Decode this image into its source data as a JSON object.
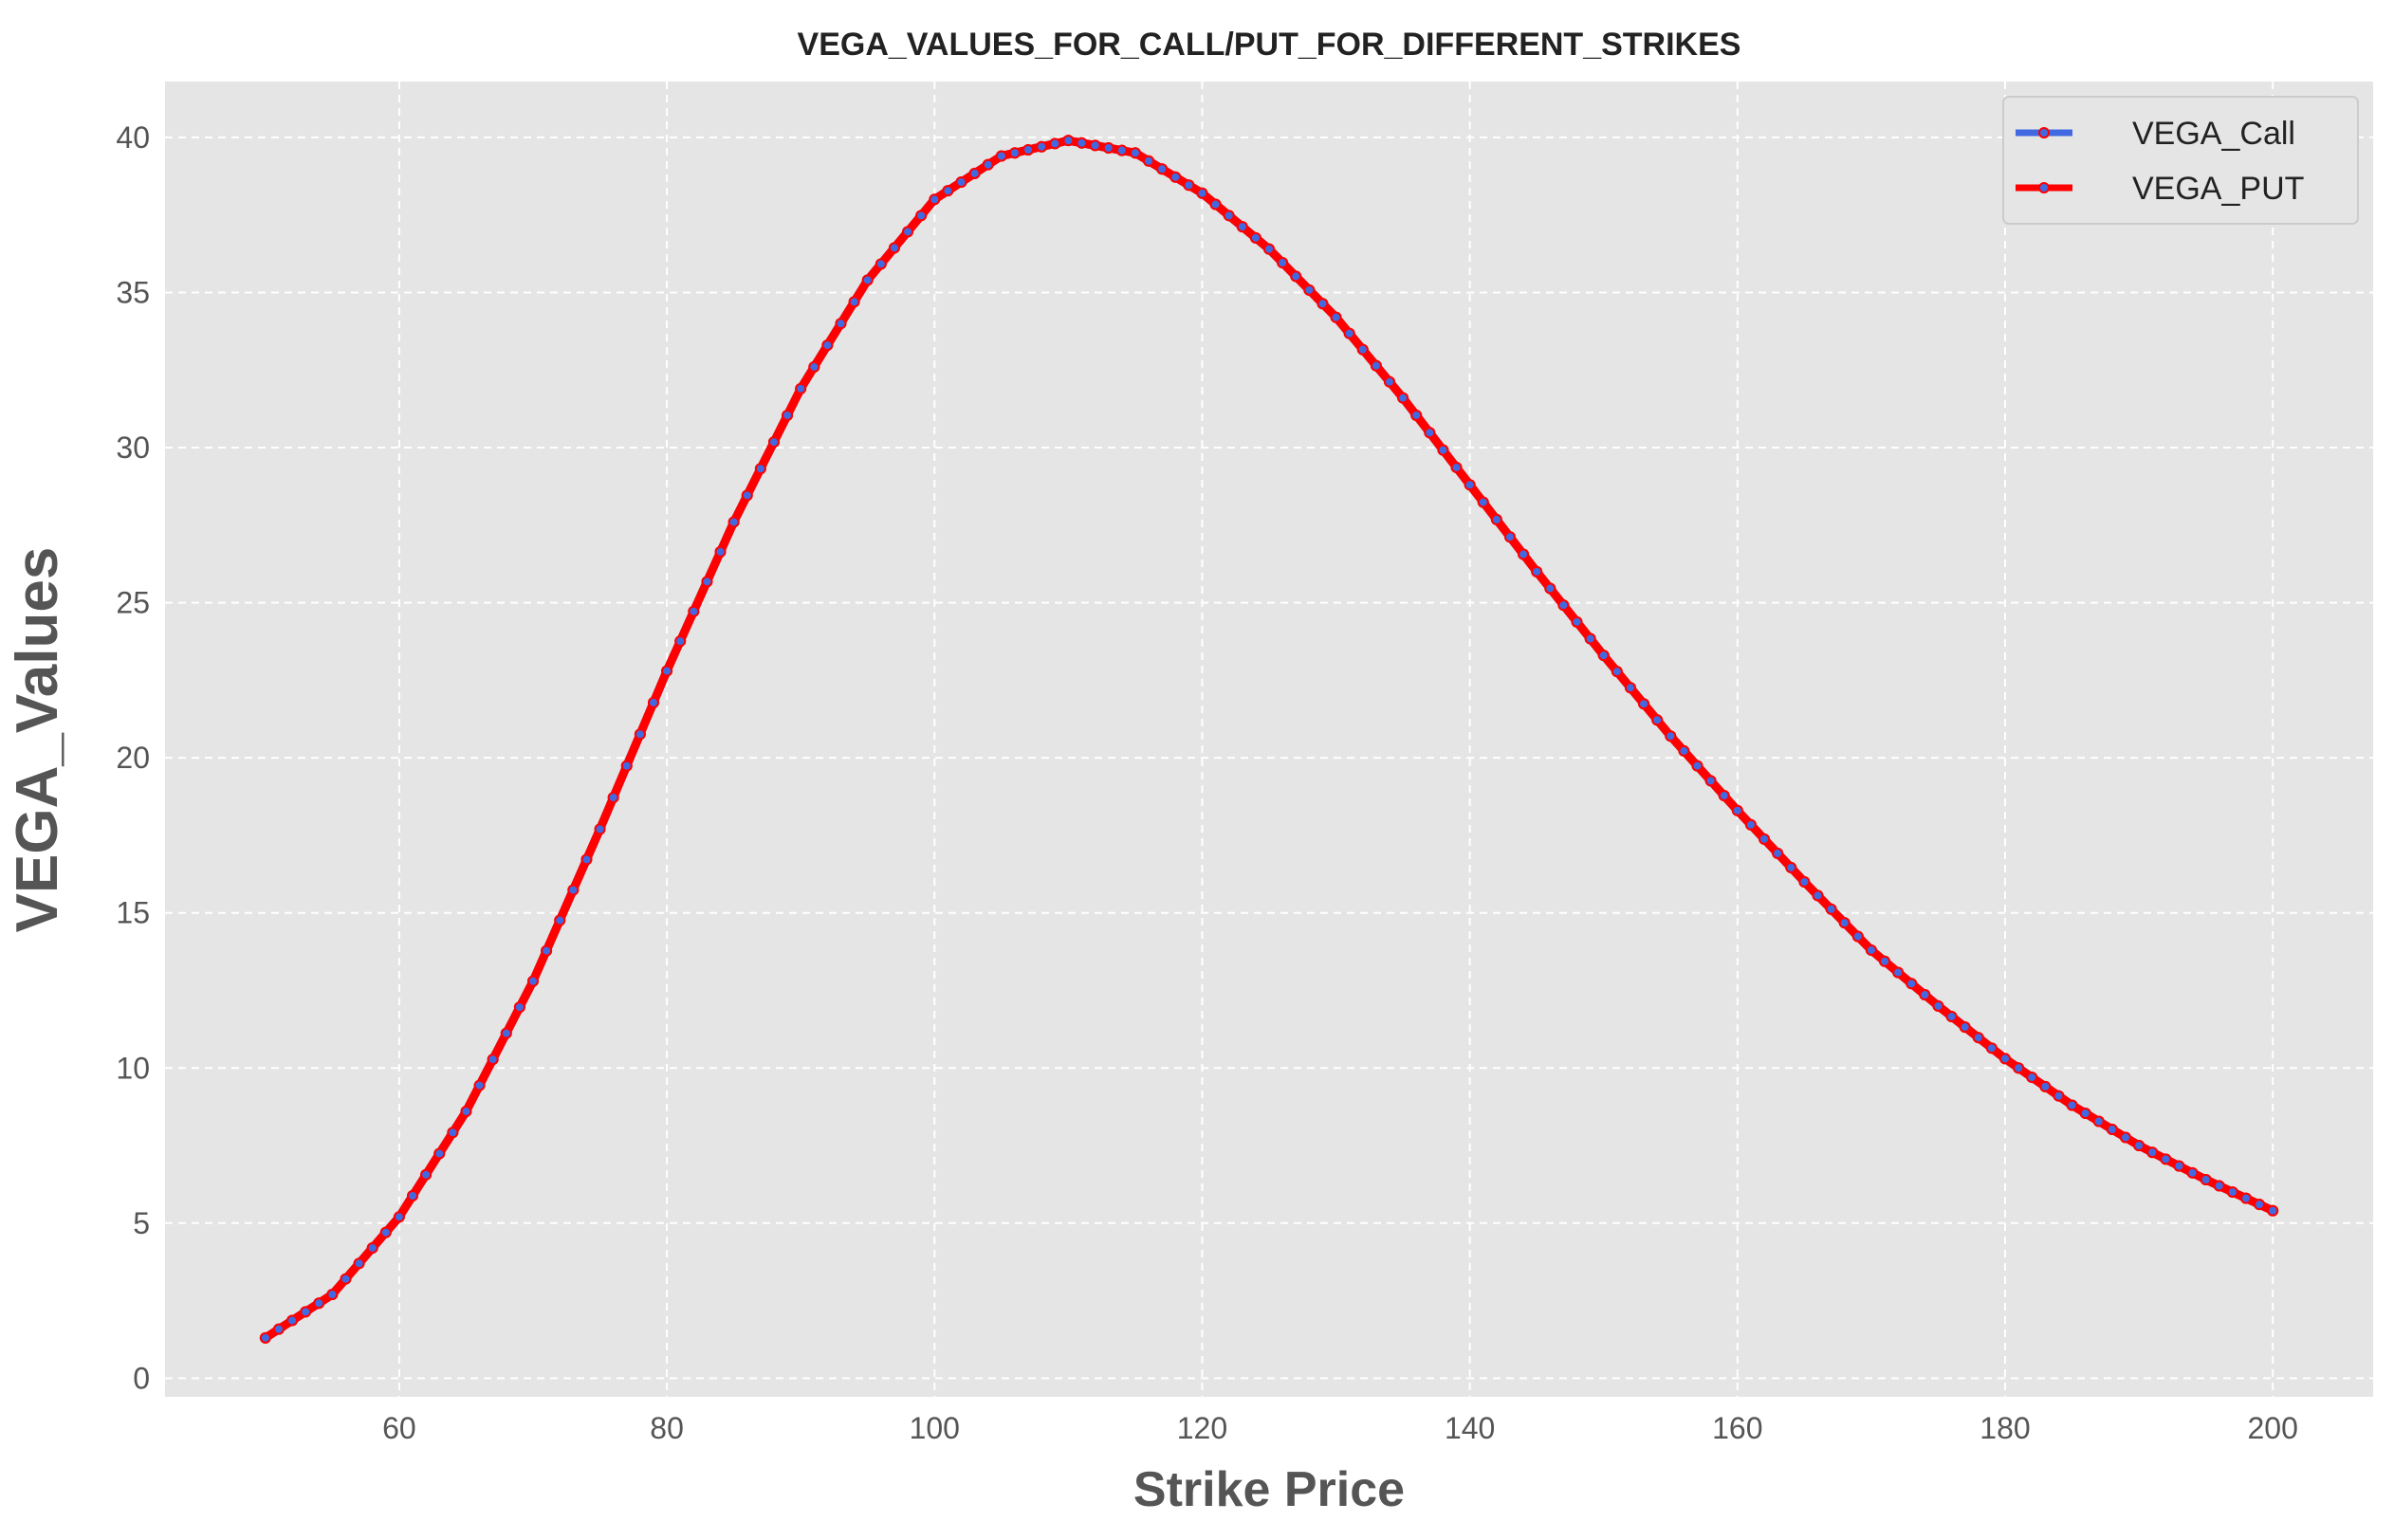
{
  "chart_data": {
    "type": "line",
    "title": "VEGA_VALUES_FOR_CALL/PUT_FOR_DIFFERENT_STRIKES",
    "xlabel": "Strike Price",
    "ylabel": "VEGA_Values",
    "xlim": [
      42.5,
      207.5
    ],
    "ylim": [
      -0.6,
      41.8
    ],
    "xticks": [
      "60",
      "80",
      "100",
      "120",
      "140",
      "160",
      "180",
      "200"
    ],
    "yticks": [
      "0",
      "5",
      "10",
      "15",
      "20",
      "25",
      "30",
      "35",
      "40"
    ],
    "grid": true,
    "legend_position": "top-right",
    "x": [
      50,
      55,
      60,
      65,
      70,
      75,
      80,
      85,
      90,
      95,
      100,
      105,
      110,
      115,
      120,
      125,
      130,
      135,
      140,
      145,
      150,
      155,
      160,
      165,
      170,
      175,
      180,
      185,
      190,
      195,
      200
    ],
    "series": [
      {
        "name": "VEGA_Call",
        "color": "#4169e1",
        "values": [
          1.3,
          2.7,
          5.2,
          8.6,
          12.8,
          17.7,
          22.8,
          27.6,
          31.9,
          35.4,
          38.0,
          39.4,
          39.9,
          39.5,
          38.2,
          36.4,
          34.2,
          31.6,
          28.8,
          26.0,
          23.3,
          20.7,
          18.3,
          16.0,
          13.8,
          12.0,
          10.3,
          8.8,
          7.5,
          6.4,
          5.4
        ]
      },
      {
        "name": "VEGA_PUT",
        "color": "#ff0000",
        "values": [
          1.3,
          2.7,
          5.2,
          8.6,
          12.8,
          17.7,
          22.8,
          27.6,
          31.9,
          35.4,
          38.0,
          39.4,
          39.9,
          39.5,
          38.2,
          36.4,
          34.2,
          31.6,
          28.8,
          26.0,
          23.3,
          20.7,
          18.3,
          16.0,
          13.8,
          12.0,
          10.3,
          8.8,
          7.5,
          6.4,
          5.4
        ]
      }
    ]
  }
}
